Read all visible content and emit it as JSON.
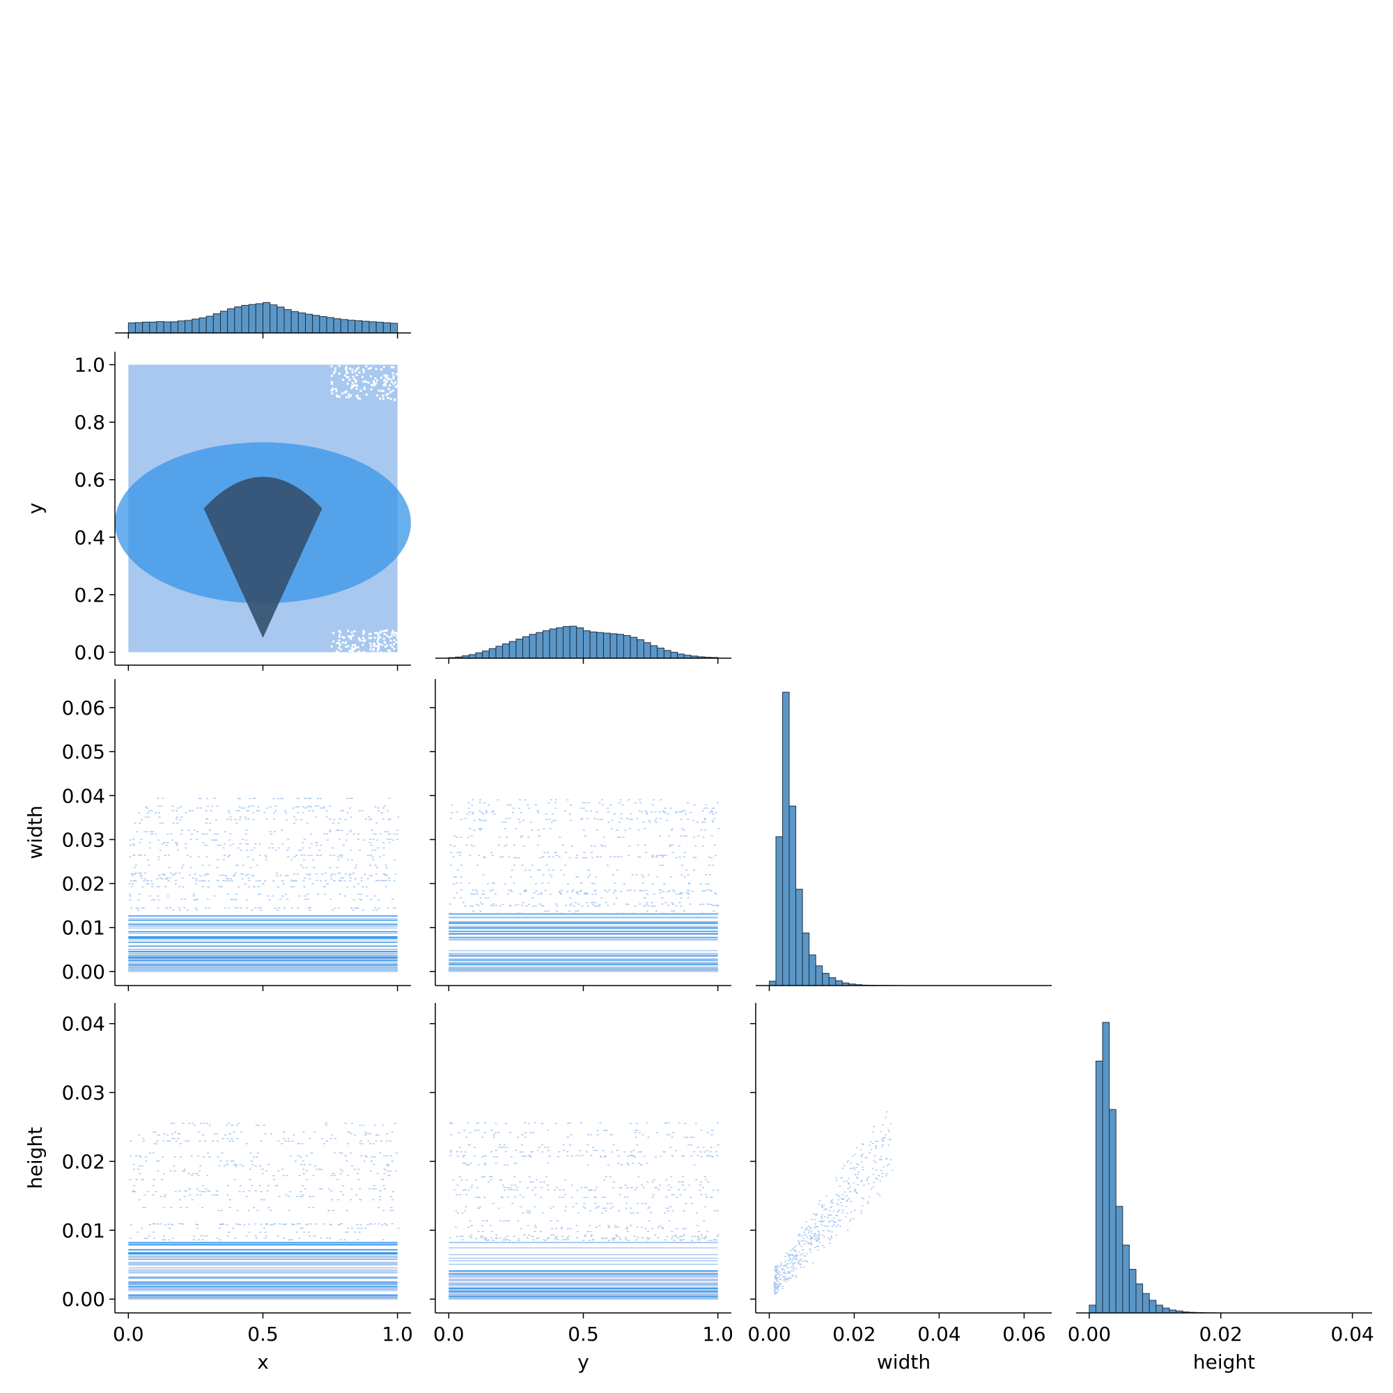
{
  "figure": {
    "type": "pairplot-corner",
    "variables": [
      "x",
      "y",
      "width",
      "height"
    ]
  },
  "colors": {
    "bar_fill": "#5b97c6",
    "bar_edge": "#1f2f44",
    "heat_light": "#a8c8f0",
    "heat_mid": "#3896e8",
    "heat_dark": "#34506e",
    "axis": "#000000"
  },
  "chart_data": [
    {
      "type": "bar",
      "panel": "diag-x",
      "xlabel": "",
      "ylabel": "",
      "xlim": [
        -0.05,
        1.05
      ],
      "bin_edges_range": [
        0.0,
        1.0
      ],
      "values": [
        6,
        6.2,
        6.5,
        6.5,
        6.8,
        6.6,
        6.7,
        7.2,
        7.5,
        8.3,
        9,
        10,
        11.5,
        13,
        14.5,
        15.6,
        16.5,
        17,
        17.5,
        18.2,
        16.8,
        15.5,
        14,
        12.8,
        12,
        11.2,
        10.5,
        9.8,
        9.2,
        8.5,
        8,
        7.6,
        7.3,
        7,
        6.7,
        6.4,
        6.1,
        5.8
      ],
      "ylim": [
        0,
        20
      ]
    },
    {
      "type": "heatmap",
      "panel": "y-vs-x",
      "xlabel": "",
      "ylabel": "y",
      "xlim": [
        -0.05,
        1.05
      ],
      "ylim": [
        -0.045,
        1.045
      ],
      "xticks": [
        "",
        "",
        ""
      ],
      "xtick_values": [
        0,
        0.5,
        1.0
      ],
      "yticks": [
        "0.0",
        "0.2",
        "0.4",
        "0.6",
        "0.8",
        "1.0"
      ],
      "ytick_values": [
        0,
        0.2,
        0.4,
        0.6,
        0.8,
        1.0
      ]
    },
    {
      "type": "bar",
      "panel": "diag-y",
      "xlabel": "",
      "ylabel": "",
      "xlim": [
        -0.05,
        1.05
      ],
      "bin_edges_range": [
        0.0,
        1.0
      ],
      "values": [
        0.5,
        1,
        2,
        3,
        4.5,
        6,
        8,
        10,
        12,
        14,
        16,
        18,
        20,
        21.5,
        23,
        24.5,
        25.5,
        26.5,
        26.8,
        25.5,
        23,
        22,
        21.5,
        21,
        20.5,
        20,
        19,
        17.5,
        15.5,
        13,
        10.5,
        8.5,
        6.5,
        5,
        3.5,
        2.5,
        1.8,
        1.2,
        0.8,
        0.6
      ],
      "ylim": [
        0,
        28
      ]
    },
    {
      "type": "heatmap",
      "panel": "width-vs-x",
      "xlabel": "",
      "ylabel": "width",
      "xlim": [
        -0.05,
        1.05
      ],
      "ylim": [
        -0.0032,
        0.0665
      ],
      "xticks": [
        "",
        "",
        ""
      ],
      "xtick_values": [
        0,
        0.5,
        1.0
      ],
      "yticks": [
        "0.00",
        "0.01",
        "0.02",
        "0.03",
        "0.04",
        "0.05",
        "0.06"
      ],
      "ytick_values": [
        0,
        0.01,
        0.02,
        0.03,
        0.04,
        0.05,
        0.06
      ]
    },
    {
      "type": "heatmap",
      "panel": "width-vs-y",
      "xlabel": "",
      "ylabel": "",
      "xlim": [
        -0.05,
        1.05
      ],
      "ylim": [
        -0.0032,
        0.0665
      ],
      "xticks": [
        "",
        "",
        ""
      ],
      "xtick_values": [
        0,
        0.5,
        1.0
      ],
      "yticks": [
        "",
        "",
        "",
        "",
        "",
        "",
        ""
      ],
      "ytick_values": [
        0,
        0.01,
        0.02,
        0.03,
        0.04,
        0.05,
        0.06
      ]
    },
    {
      "type": "bar",
      "panel": "diag-width",
      "xlabel": "",
      "ylabel": "",
      "xlim": [
        -0.0032,
        0.0665
      ],
      "bin_edges_range": [
        0.0,
        0.0625
      ],
      "values": [
        1,
        34,
        67,
        41,
        22,
        12,
        7,
        4.5,
        2.8,
        1.8,
        1.1,
        0.6,
        0.35,
        0.2,
        0.1,
        0.08,
        0.05,
        0.03,
        0.02,
        0.01,
        0,
        0,
        0,
        0,
        0,
        0,
        0,
        0,
        0,
        0,
        0,
        0,
        0,
        0,
        0,
        0,
        0,
        0,
        0,
        0
      ],
      "ylim": [
        0,
        70
      ]
    },
    {
      "type": "heatmap",
      "panel": "height-vs-x",
      "xlabel": "x",
      "ylabel": "height",
      "xlim": [
        -0.05,
        1.05
      ],
      "ylim": [
        -0.002,
        0.043
      ],
      "xticks": [
        "0.0",
        "0.5",
        "1.0"
      ],
      "xtick_values": [
        0,
        0.5,
        1.0
      ],
      "yticks": [
        "0.00",
        "0.01",
        "0.02",
        "0.03",
        "0.04"
      ],
      "ytick_values": [
        0,
        0.01,
        0.02,
        0.03,
        0.04
      ]
    },
    {
      "type": "heatmap",
      "panel": "height-vs-y",
      "xlabel": "y",
      "ylabel": "",
      "xlim": [
        -0.05,
        1.05
      ],
      "ylim": [
        -0.002,
        0.043
      ],
      "xticks": [
        "0.0",
        "0.5",
        "1.0"
      ],
      "xtick_values": [
        0,
        0.5,
        1.0
      ],
      "yticks": [
        "",
        "",
        "",
        "",
        ""
      ],
      "ytick_values": [
        0,
        0.01,
        0.02,
        0.03,
        0.04
      ]
    },
    {
      "type": "scatter",
      "panel": "height-vs-width",
      "xlabel": "width",
      "ylabel": "",
      "xlim": [
        -0.0032,
        0.0665
      ],
      "ylim": [
        -0.002,
        0.043
      ],
      "xticks": [
        "0.00",
        "0.02",
        "0.04",
        "0.06"
      ],
      "xtick_values": [
        0,
        0.02,
        0.04,
        0.06
      ],
      "yticks": [
        "",
        "",
        "",
        "",
        ""
      ],
      "ytick_values": [
        0,
        0.01,
        0.02,
        0.03,
        0.04
      ]
    },
    {
      "type": "bar",
      "panel": "diag-height",
      "xlabel": "height",
      "ylabel": "",
      "xlim": [
        -0.002,
        0.043
      ],
      "bin_edges_range": [
        0.0,
        0.0406
      ],
      "values": [
        0.8,
        26,
        30,
        21,
        11,
        7,
        4.5,
        3,
        2,
        1.3,
        0.8,
        0.5,
        0.3,
        0.2,
        0.1,
        0.06,
        0.04,
        0.02,
        0.01,
        0,
        0,
        0,
        0,
        0,
        0,
        0,
        0,
        0,
        0,
        0,
        0,
        0,
        0,
        0,
        0,
        0,
        0,
        0,
        0,
        0
      ],
      "ylim": [
        0,
        32
      ],
      "xticks": [
        "0.00",
        "0.02",
        "0.04"
      ],
      "xtick_values": [
        0,
        0.02,
        0.04
      ]
    }
  ]
}
